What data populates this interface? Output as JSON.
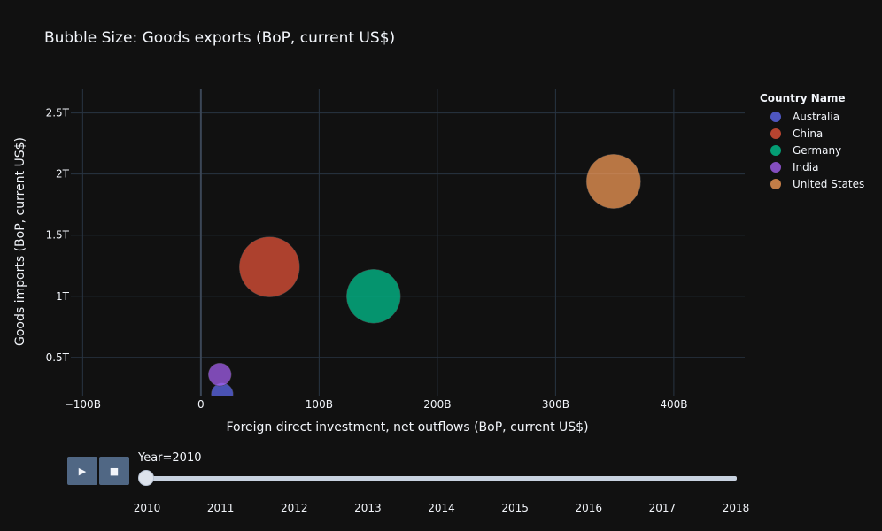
{
  "chart_data": {
    "type": "scatter",
    "title": "Bubble Size: Goods exports (BoP, current US$)",
    "xlabel": "Foreign direct investment, net outflows (BoP, current US$)",
    "ylabel": "Goods imports (BoP, current US$)",
    "xlim": [
      -110,
      460
    ],
    "ylim": [
      0.18,
      2.7
    ],
    "xticks": [
      {
        "value": -100,
        "label": "−100B"
      },
      {
        "value": 0,
        "label": "0"
      },
      {
        "value": 100,
        "label": "100B"
      },
      {
        "value": 200,
        "label": "200B"
      },
      {
        "value": 300,
        "label": "300B"
      },
      {
        "value": 400,
        "label": "400B"
      }
    ],
    "yticks": [
      {
        "value": 0.5,
        "label": "0.5T"
      },
      {
        "value": 1,
        "label": "1T"
      },
      {
        "value": 1.5,
        "label": "1.5T"
      },
      {
        "value": 2,
        "label": "2T"
      },
      {
        "value": 2.5,
        "label": "2.5T"
      }
    ],
    "legend_title": "Country Name",
    "legend_position": "top-right",
    "series": [
      {
        "name": "Australia",
        "color": "#636efa",
        "x": 18,
        "y": 0.2,
        "size": 0.21
      },
      {
        "name": "China",
        "color": "#ef553b",
        "x": 58,
        "y": 1.24,
        "size": 1.58
      },
      {
        "name": "Germany",
        "color": "#00cc96",
        "x": 146,
        "y": 1.0,
        "size": 1.27
      },
      {
        "name": "India",
        "color": "#ab63fa",
        "x": 16,
        "y": 0.36,
        "size": 0.23
      },
      {
        "name": "United States",
        "color": "#ffa15a",
        "x": 349,
        "y": 1.94,
        "size": 1.29
      }
    ]
  },
  "animation": {
    "play_icon": "▶",
    "stop_icon": "■",
    "slider_label": "Year=2010",
    "current_year": 2010,
    "years": [
      "2010",
      "2011",
      "2012",
      "2013",
      "2014",
      "2015",
      "2016",
      "2017",
      "2018"
    ]
  }
}
